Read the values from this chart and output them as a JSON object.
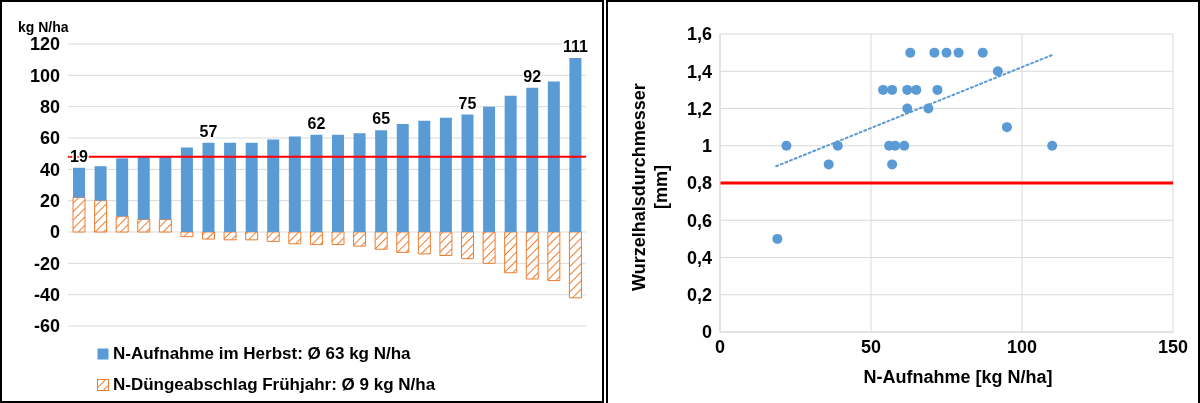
{
  "chart_data": [
    {
      "type": "bar",
      "stacked": true,
      "ylabel": "kg N/ha",
      "categories": [
        null,
        null,
        null,
        null,
        null,
        null,
        null,
        null,
        null,
        null,
        null,
        null,
        null,
        null,
        null,
        null,
        null,
        null,
        null,
        null,
        null,
        null,
        null,
        null
      ],
      "series": [
        {
          "name": "N-Düngeabschlag Frühjahr: Ø 9 kg N/ha",
          "color": "#ed7d31",
          "values": [
            22,
            20,
            10,
            8,
            8,
            -3,
            -4.5,
            -5,
            -5,
            -6,
            -7.5,
            -8,
            -8,
            -9,
            -11,
            -13,
            -14,
            -15,
            -17,
            -20,
            -26,
            -30,
            -31,
            -42
          ]
        },
        {
          "name": "N-Aufnahme im Herbst: Ø 63 kg N/ha",
          "color": "#5b9bd5",
          "values": [
            19,
            22,
            37,
            40,
            40,
            54,
            57,
            57,
            57,
            59,
            61,
            62,
            62,
            63,
            65,
            69,
            71,
            73,
            75,
            80,
            87,
            92,
            96,
            111
          ],
          "value_labels": [
            "19",
            null,
            null,
            null,
            null,
            null,
            "57",
            null,
            null,
            null,
            null,
            "62",
            null,
            null,
            "65",
            null,
            null,
            null,
            "75",
            null,
            null,
            "92",
            null,
            "111"
          ]
        }
      ],
      "ylim": [
        -60,
        120
      ],
      "yticks": [
        -60,
        -40,
        -20,
        0,
        20,
        40,
        60,
        80,
        100,
        120
      ],
      "grid": "y",
      "tick_labels": "y",
      "legend": "bottom",
      "ref_lines": [
        {
          "axis": "y",
          "value": 48,
          "color": "#ff0000"
        }
      ]
    },
    {
      "type": "scatter",
      "xlabel": "N-Aufnahme [kg N/ha]",
      "ylabel": "Wurzelhalsdurchmesser [mm]",
      "series": [
        {
          "type": "scatter",
          "marker": "circle",
          "color": "#5b9bd5",
          "x": [
            19,
            22,
            36,
            39,
            54,
            57,
            62,
            65,
            72,
            62,
            69,
            63,
            71,
            75,
            79,
            87,
            92,
            95,
            110,
            56,
            58,
            61,
            57
          ],
          "values": [
            0.5,
            1.0,
            0.9,
            1.0,
            1.3,
            1.3,
            1.3,
            1.3,
            1.3,
            1.2,
            1.2,
            1.5,
            1.5,
            1.5,
            1.5,
            1.5,
            1.4,
            1.1,
            1.0,
            1.0,
            1.0,
            1.0,
            0.9
          ]
        },
        {
          "type": "line",
          "color": "#5b9bd5",
          "line_style": "dotted",
          "x": [
            18.6,
            110.4
          ],
          "values": [
            0.89,
            1.49
          ]
        }
      ],
      "xlim": [
        0,
        150
      ],
      "xticks": [
        0,
        50,
        100,
        150
      ],
      "ylim": [
        0,
        1.6
      ],
      "yticks": [
        0,
        {
          "value": 0.2,
          "label": "0,2"
        },
        {
          "value": 0.4,
          "label": "0,4"
        },
        {
          "value": 0.6,
          "label": "0,6"
        },
        {
          "value": 0.8,
          "label": "0,8"
        },
        1,
        {
          "value": 1.2,
          "label": "1,2"
        },
        {
          "value": 1.4,
          "label": "1,4"
        },
        {
          "value": 1.6,
          "label": "1,6"
        }
      ],
      "grid": true,
      "ref_lines": [
        {
          "axis": "y",
          "value": 0.8,
          "color": "#ff0000"
        }
      ]
    }
  ]
}
